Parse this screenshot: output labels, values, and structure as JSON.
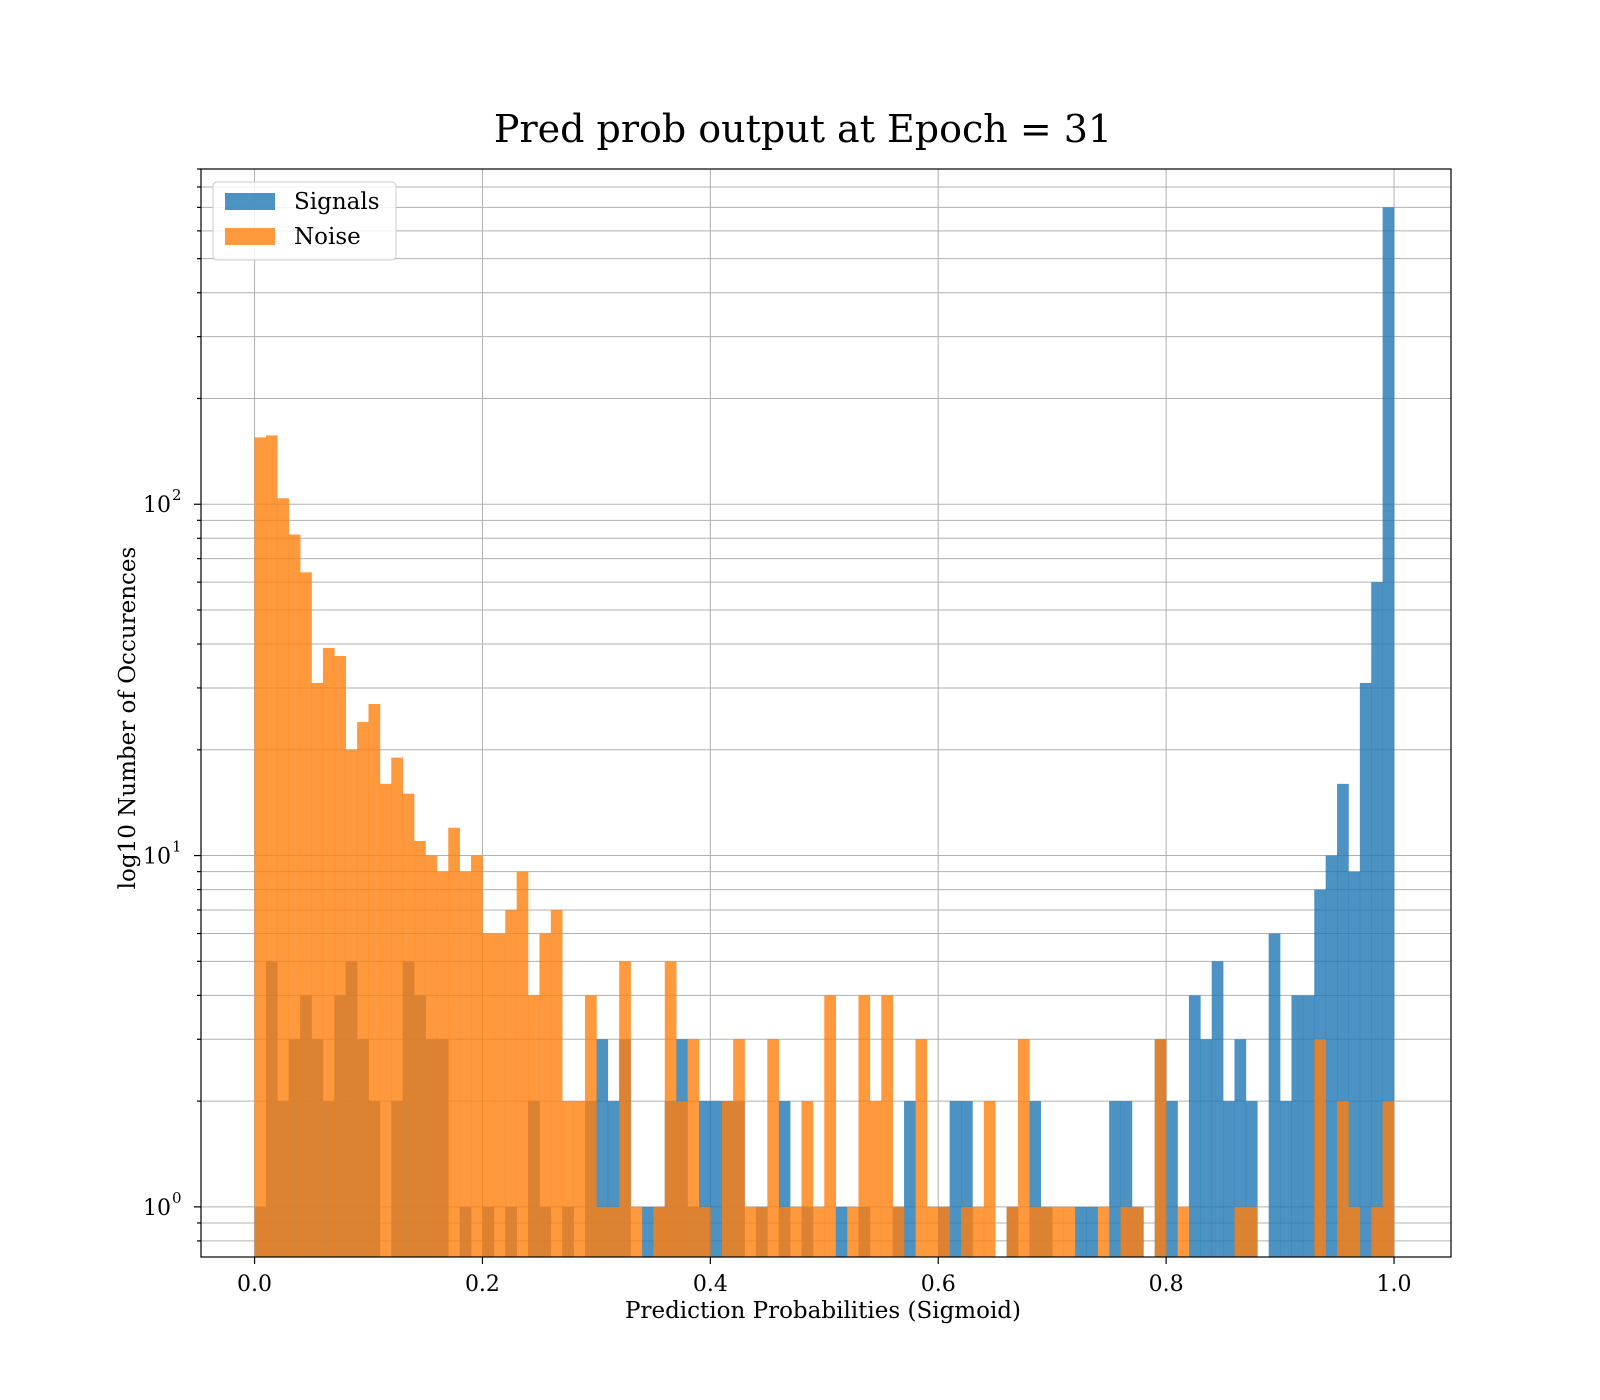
{
  "chart_data": {
    "type": "bar",
    "title": "Pred prob output at Epoch = 31",
    "xlabel": "Prediction Probabilities (Sigmoid)",
    "ylabel": "log10 Number of Occurences",
    "yscale": "log",
    "xlim": [
      -0.047,
      1.05
    ],
    "ylim": [
      0.72,
      900
    ],
    "bin_width": 0.01,
    "x_ticks": [
      0.0,
      0.2,
      0.4,
      0.6,
      0.8,
      1.0
    ],
    "x_tick_labels": [
      "0.0",
      "0.2",
      "0.4",
      "0.6",
      "0.8",
      "1.0"
    ],
    "y_ticks": [
      1,
      10,
      100
    ],
    "y_tick_bases": [
      "10",
      "10",
      "10"
    ],
    "y_tick_exponents": [
      "0",
      "1",
      "2"
    ],
    "grid": true,
    "legend": "upper-left",
    "series": [
      {
        "name": "Signals",
        "color": "#1f77b4",
        "bins": [
          [
            0.0,
            1
          ],
          [
            0.01,
            5
          ],
          [
            0.02,
            2
          ],
          [
            0.03,
            3
          ],
          [
            0.04,
            4
          ],
          [
            0.05,
            3
          ],
          [
            0.06,
            2
          ],
          [
            0.07,
            4
          ],
          [
            0.08,
            5
          ],
          [
            0.09,
            3
          ],
          [
            0.1,
            2
          ],
          [
            0.12,
            2
          ],
          [
            0.13,
            5
          ],
          [
            0.14,
            4
          ],
          [
            0.15,
            3
          ],
          [
            0.16,
            3
          ],
          [
            0.18,
            1
          ],
          [
            0.2,
            1
          ],
          [
            0.22,
            1
          ],
          [
            0.24,
            2
          ],
          [
            0.25,
            1
          ],
          [
            0.27,
            1
          ],
          [
            0.29,
            2
          ],
          [
            0.3,
            3
          ],
          [
            0.31,
            2
          ],
          [
            0.32,
            3
          ],
          [
            0.34,
            1
          ],
          [
            0.35,
            1
          ],
          [
            0.36,
            2
          ],
          [
            0.37,
            3
          ],
          [
            0.38,
            1
          ],
          [
            0.39,
            2
          ],
          [
            0.4,
            2
          ],
          [
            0.41,
            2
          ],
          [
            0.42,
            2
          ],
          [
            0.44,
            1
          ],
          [
            0.46,
            2
          ],
          [
            0.48,
            1
          ],
          [
            0.51,
            1
          ],
          [
            0.53,
            1
          ],
          [
            0.56,
            1
          ],
          [
            0.57,
            2
          ],
          [
            0.6,
            1
          ],
          [
            0.61,
            2
          ],
          [
            0.62,
            2
          ],
          [
            0.66,
            1
          ],
          [
            0.68,
            2
          ],
          [
            0.69,
            1
          ],
          [
            0.72,
            1
          ],
          [
            0.73,
            1
          ],
          [
            0.75,
            2
          ],
          [
            0.76,
            2
          ],
          [
            0.77,
            1
          ],
          [
            0.79,
            3
          ],
          [
            0.8,
            2
          ],
          [
            0.82,
            4
          ],
          [
            0.83,
            3
          ],
          [
            0.84,
            5
          ],
          [
            0.85,
            2
          ],
          [
            0.86,
            3
          ],
          [
            0.87,
            2
          ],
          [
            0.89,
            6
          ],
          [
            0.9,
            2
          ],
          [
            0.91,
            4
          ],
          [
            0.92,
            4
          ],
          [
            0.93,
            8
          ],
          [
            0.94,
            10
          ],
          [
            0.95,
            16
          ],
          [
            0.96,
            9
          ],
          [
            0.97,
            31
          ],
          [
            0.98,
            60
          ],
          [
            0.99,
            700
          ]
        ]
      },
      {
        "name": "Noise",
        "color": "#ff7f0e",
        "bins": [
          [
            0.0,
            155
          ],
          [
            0.01,
            157
          ],
          [
            0.02,
            104
          ],
          [
            0.03,
            82
          ],
          [
            0.04,
            64
          ],
          [
            0.05,
            31
          ],
          [
            0.06,
            39
          ],
          [
            0.07,
            37
          ],
          [
            0.08,
            20
          ],
          [
            0.09,
            24
          ],
          [
            0.1,
            27
          ],
          [
            0.11,
            16
          ],
          [
            0.12,
            19
          ],
          [
            0.13,
            15
          ],
          [
            0.14,
            11
          ],
          [
            0.15,
            10
          ],
          [
            0.16,
            9
          ],
          [
            0.17,
            12
          ],
          [
            0.18,
            9
          ],
          [
            0.19,
            10
          ],
          [
            0.2,
            6
          ],
          [
            0.21,
            6
          ],
          [
            0.22,
            7
          ],
          [
            0.23,
            9
          ],
          [
            0.24,
            4
          ],
          [
            0.25,
            6
          ],
          [
            0.26,
            7
          ],
          [
            0.27,
            2
          ],
          [
            0.28,
            2
          ],
          [
            0.29,
            4
          ],
          [
            0.3,
            1
          ],
          [
            0.31,
            1
          ],
          [
            0.32,
            5
          ],
          [
            0.33,
            1
          ],
          [
            0.35,
            1
          ],
          [
            0.36,
            5
          ],
          [
            0.37,
            2
          ],
          [
            0.38,
            3
          ],
          [
            0.39,
            1
          ],
          [
            0.41,
            2
          ],
          [
            0.42,
            3
          ],
          [
            0.43,
            1
          ],
          [
            0.44,
            1
          ],
          [
            0.45,
            3
          ],
          [
            0.46,
            1
          ],
          [
            0.47,
            1
          ],
          [
            0.48,
            2
          ],
          [
            0.49,
            1
          ],
          [
            0.5,
            4
          ],
          [
            0.52,
            1
          ],
          [
            0.53,
            4
          ],
          [
            0.54,
            2
          ],
          [
            0.55,
            4
          ],
          [
            0.56,
            1
          ],
          [
            0.58,
            3
          ],
          [
            0.59,
            1
          ],
          [
            0.6,
            1
          ],
          [
            0.62,
            1
          ],
          [
            0.63,
            1
          ],
          [
            0.64,
            2
          ],
          [
            0.66,
            1
          ],
          [
            0.67,
            3
          ],
          [
            0.68,
            1
          ],
          [
            0.69,
            1
          ],
          [
            0.7,
            1
          ],
          [
            0.71,
            1
          ],
          [
            0.74,
            1
          ],
          [
            0.76,
            1
          ],
          [
            0.77,
            1
          ],
          [
            0.79,
            3
          ],
          [
            0.81,
            1
          ],
          [
            0.86,
            1
          ],
          [
            0.87,
            1
          ],
          [
            0.93,
            3
          ],
          [
            0.95,
            2
          ],
          [
            0.96,
            1
          ],
          [
            0.98,
            1
          ],
          [
            0.99,
            2
          ]
        ]
      }
    ]
  }
}
